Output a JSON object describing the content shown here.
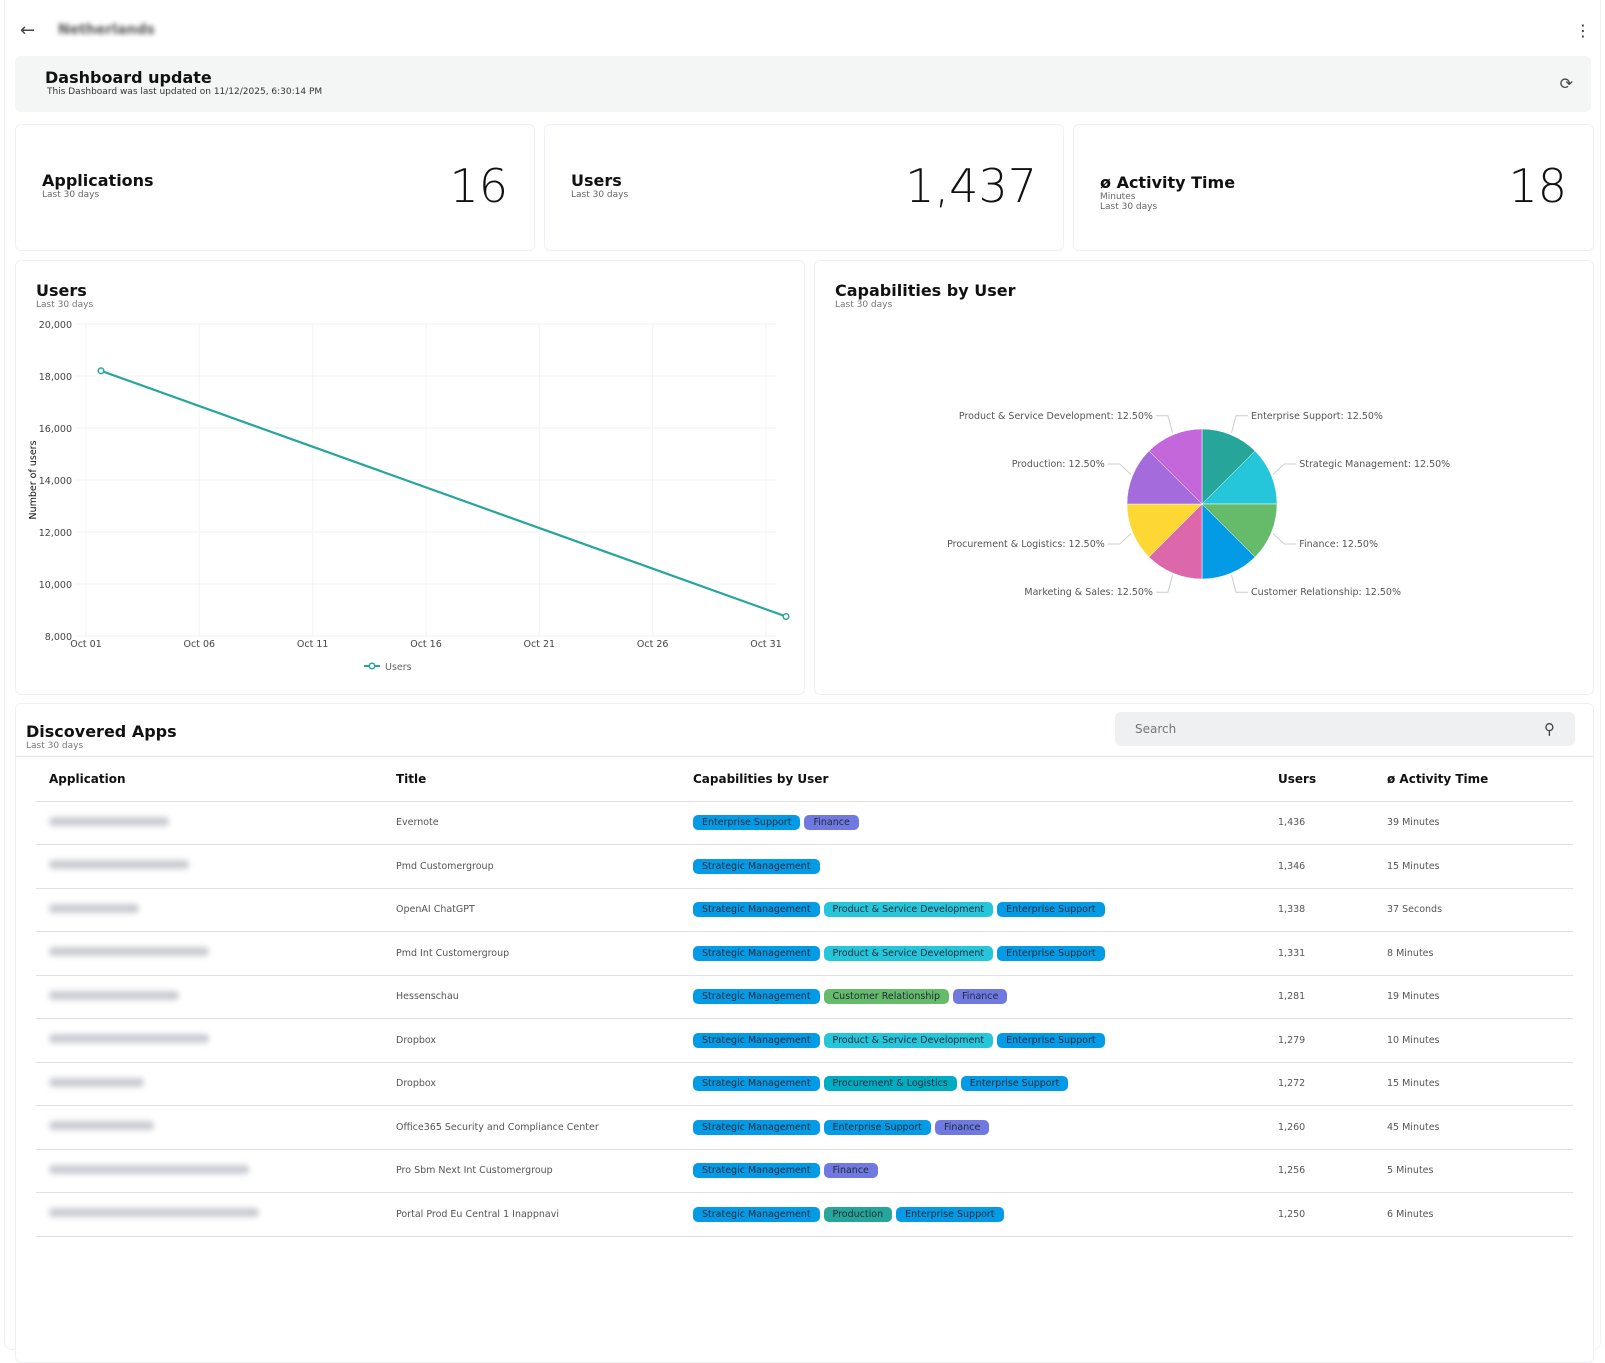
{
  "header": {
    "title_blurred": "Netherlands"
  },
  "update": {
    "title": "Dashboard update",
    "subtitle": "This Dashboard was last updated on 11/12/2025, 6:30:14 PM"
  },
  "kpis": [
    {
      "title": "Applications",
      "sub": "Last 30 days",
      "value": "16"
    },
    {
      "title": "Users",
      "sub": "Last 30 days",
      "value": "1,437"
    },
    {
      "title": "ø Activity Time",
      "sub": "Minutes",
      "sub2": "Last 30 days",
      "value": "18"
    }
  ],
  "users_chart": {
    "title": "Users",
    "sub": "Last 30 days"
  },
  "cap_chart": {
    "title": "Capabilities by User",
    "sub": "Last 30 days"
  },
  "chart_data": [
    {
      "type": "line",
      "ylabel": "Number of users",
      "ylim": [
        8000,
        20000
      ],
      "yticks": [
        "20,000",
        "18,000",
        "16,000",
        "14,000",
        "12,000",
        "10,000",
        "8,000"
      ],
      "xticks": [
        "Oct 01",
        "Oct 06",
        "Oct 11",
        "Oct 16",
        "Oct 21",
        "Oct 26",
        "Oct 31"
      ],
      "series": [
        {
          "name": "Users",
          "color": "#26A69A",
          "points": [
            {
              "x": "Oct 01",
              "y": 18200
            },
            {
              "x": "Oct 31",
              "y": 8750
            }
          ]
        }
      ],
      "grid": true,
      "legend": "bottom"
    },
    {
      "type": "pie",
      "slices": [
        {
          "label": "Enterprise Support",
          "value": 12.5,
          "text": "Enterprise Support: 12.50%",
          "color": "#26A69A"
        },
        {
          "label": "Strategic Management",
          "value": 12.5,
          "text": "Strategic Management: 12.50%",
          "color": "#26C6DA"
        },
        {
          "label": "Finance",
          "value": 12.5,
          "text": "Finance: 12.50%",
          "color": "#66BB6A"
        },
        {
          "label": "Customer Relationship",
          "value": 12.5,
          "text": "Customer Relationship: 12.50%",
          "color": "#039BE5"
        },
        {
          "label": "Marketing & Sales",
          "value": 12.5,
          "text": "Marketing & Sales: 12.50%",
          "color": "#DC67AB"
        },
        {
          "label": "Procurement & Logistics",
          "value": 12.5,
          "text": "Procurement & Logistics: 12.50%",
          "color": "#FDD835"
        },
        {
          "label": "Production",
          "value": 12.5,
          "text": "Production: 12.50%",
          "color": "#A36BDB"
        },
        {
          "label": "Product & Service Development",
          "value": 12.5,
          "text": "Product & Service Development: 12.50%",
          "color": "#C467DB"
        }
      ]
    }
  ],
  "apps": {
    "title": "Discovered Apps",
    "sub": "Last 30 days",
    "search_placeholder": "Search",
    "columns": [
      "Application",
      "Title",
      "Capabilities by User",
      "Users",
      "ø Activity Time"
    ],
    "tag_colors": {
      "Strategic Management": "#039BE5",
      "Enterprise Support": "#039BE5",
      "Finance": "#7079E0",
      "Product & Service Development": "#26C6DA",
      "Customer Relationship": "#66BB6A",
      "Procurement & Logistics": "#00ACC1",
      "Production": "#26A69A"
    },
    "rows": [
      {
        "title": "Evernote",
        "tags": [
          "Enterprise Support",
          "Finance"
        ],
        "users": "1,436",
        "time": "39 Minutes"
      },
      {
        "title": "Pmd Customergroup",
        "tags": [
          "Strategic Management"
        ],
        "users": "1,346",
        "time": "15 Minutes"
      },
      {
        "title": "OpenAI ChatGPT",
        "tags": [
          "Strategic Management",
          "Product & Service Development",
          "Enterprise Support"
        ],
        "users": "1,338",
        "time": "37 Seconds"
      },
      {
        "title": "Pmd Int Customergroup",
        "tags": [
          "Strategic Management",
          "Product & Service Development",
          "Enterprise Support"
        ],
        "users": "1,331",
        "time": "8 Minutes"
      },
      {
        "title": "Hessenschau",
        "tags": [
          "Strategic Management",
          "Customer Relationship",
          "Finance"
        ],
        "users": "1,281",
        "time": "19 Minutes"
      },
      {
        "title": "Dropbox",
        "tags": [
          "Strategic Management",
          "Product & Service Development",
          "Enterprise Support"
        ],
        "users": "1,279",
        "time": "10 Minutes"
      },
      {
        "title": "Dropbox",
        "tags": [
          "Strategic Management",
          "Procurement & Logistics",
          "Enterprise Support"
        ],
        "users": "1,272",
        "time": "15 Minutes"
      },
      {
        "title": "Office365 Security and Compliance Center",
        "tags": [
          "Strategic Management",
          "Enterprise Support",
          "Finance"
        ],
        "users": "1,260",
        "time": "45 Minutes"
      },
      {
        "title": "Pro Sbm Next Int Customergroup",
        "tags": [
          "Strategic Management",
          "Finance"
        ],
        "users": "1,256",
        "time": "5 Minutes"
      },
      {
        "title": "Portal Prod Eu Central 1 Inappnavi",
        "tags": [
          "Strategic Management",
          "Production",
          "Enterprise Support"
        ],
        "users": "1,250",
        "time": "6 Minutes"
      }
    ]
  }
}
